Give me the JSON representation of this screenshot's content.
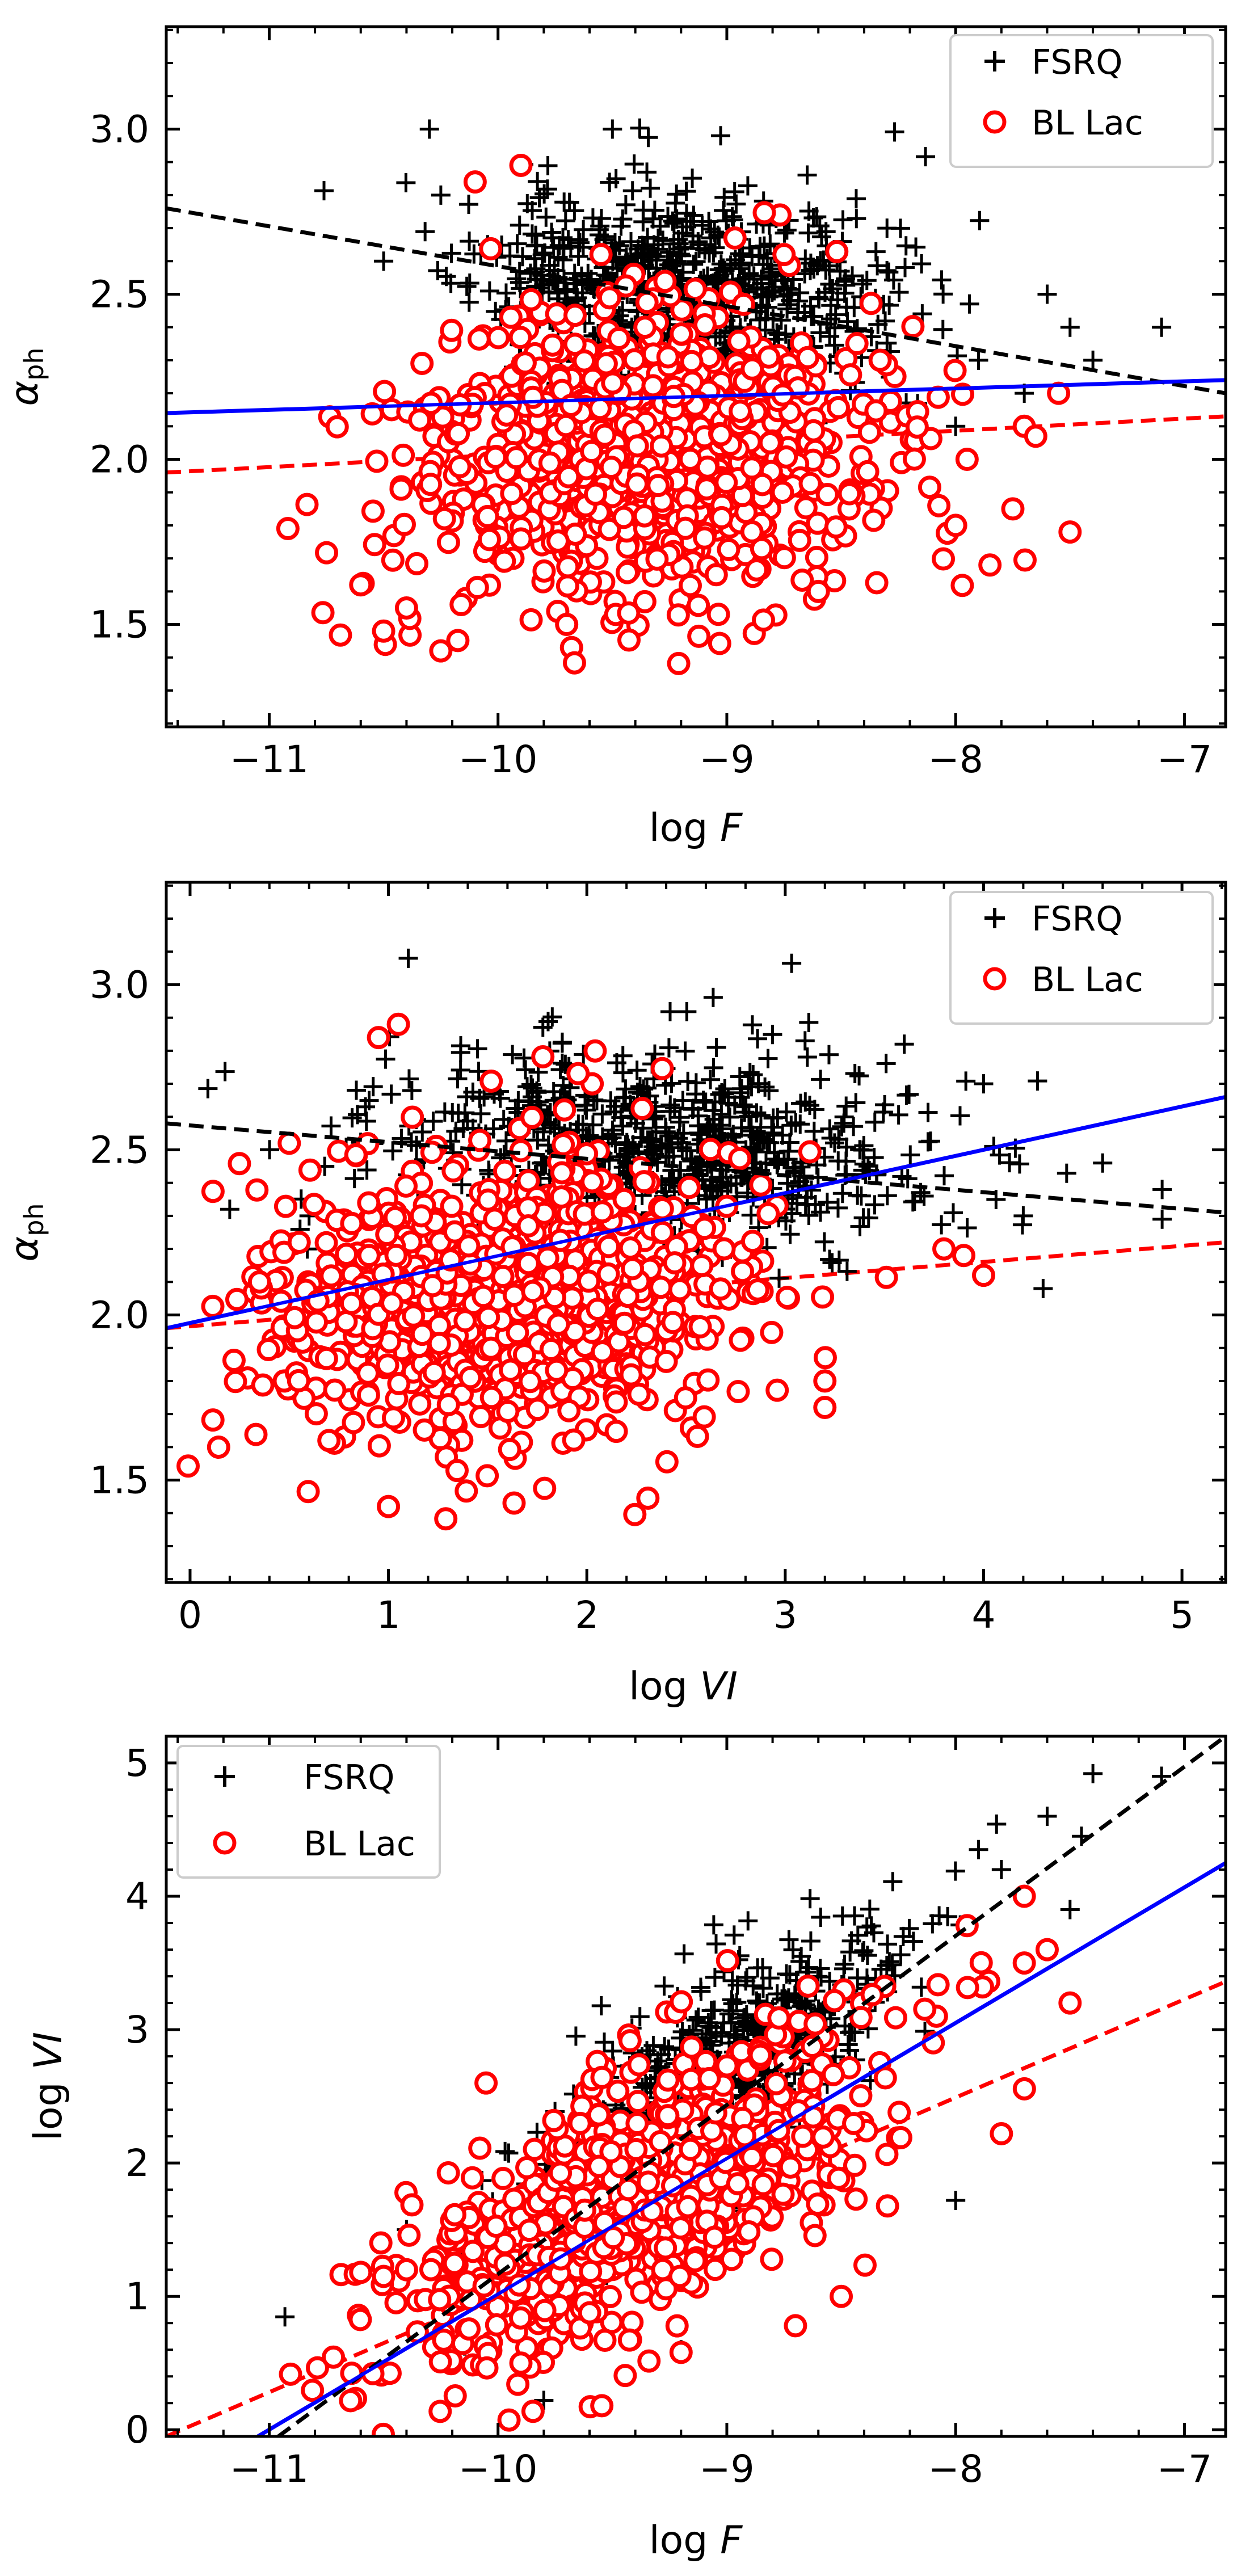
{
  "figure": {
    "type": "scatter",
    "description_panels": 3
  },
  "colors": {
    "fsrq": "#000000",
    "bllac": "#ff0000",
    "all_fit": "#0000ff",
    "axes": "#000000"
  },
  "legend": {
    "fsrq": "FSRQ",
    "bllac": "BL Lac"
  },
  "chart_data": [
    {
      "type": "scatter",
      "title": "",
      "xlabel": "log F",
      "ylabel": "α_ph",
      "xlabel_main": "log",
      "xlabel_var": "F",
      "ylabel_main": "α",
      "ylabel_sub": "ph",
      "xlim": [
        -11.45,
        -6.82
      ],
      "ylim": [
        1.19,
        3.31
      ],
      "xticks": [
        -11,
        -10,
        -9,
        -8,
        -7
      ],
      "xtick_labels": [
        "−11",
        "−10",
        "−9",
        "−8",
        "−7"
      ],
      "yticks": [
        1.5,
        2.0,
        2.5,
        3.0
      ],
      "ytick_labels": [
        "1.5",
        "2.0",
        "2.5",
        "3.0"
      ],
      "legend_position": "top-right",
      "series": [
        {
          "name": "FSRQ",
          "marker": "plus",
          "cloud": {
            "x_mean": -9.2,
            "x_sd": 0.45,
            "y_mean": 2.52,
            "y_sd": 0.15,
            "slope": -0.05,
            "n": 700,
            "seed": 11
          },
          "outliers": [
            [
              -10.5,
              2.6
            ],
            [
              -10.3,
              3.0
            ],
            [
              -9.5,
              3.0
            ],
            [
              -8.3,
              2.7
            ],
            [
              -8.0,
              2.1
            ],
            [
              -7.6,
              2.5
            ],
            [
              -7.5,
              2.4
            ],
            [
              -7.1,
              2.4
            ],
            [
              -7.9,
              2.3
            ],
            [
              -7.4,
              2.3
            ],
            [
              -7.7,
              2.2
            ],
            [
              -10.25,
              2.8
            ]
          ]
        },
        {
          "name": "BL Lac",
          "marker": "circle",
          "cloud": {
            "x_mean": -9.4,
            "x_sd": 0.5,
            "y_mean": 2.0,
            "y_sd": 0.22,
            "slope": 0.03,
            "n": 900,
            "seed": 23
          },
          "outliers": [
            [
              -10.6,
              1.62
            ],
            [
              -10.5,
              1.48
            ],
            [
              -10.4,
              1.55
            ],
            [
              -10.25,
              1.42
            ],
            [
              -10.1,
              2.84
            ],
            [
              -9.9,
              2.89
            ],
            [
              -9.7,
              1.5
            ],
            [
              -9.55,
              2.62
            ],
            [
              -8.75,
              2.62
            ],
            [
              -8.6,
              1.6
            ],
            [
              -8.0,
              1.8
            ],
            [
              -7.85,
              1.68
            ],
            [
              -7.7,
              2.1
            ],
            [
              -7.65,
              2.07
            ],
            [
              -7.5,
              1.78
            ],
            [
              -7.55,
              2.2
            ],
            [
              -7.75,
              1.85
            ],
            [
              -7.95,
              2.0
            ]
          ]
        }
      ],
      "fit_lines": [
        {
          "name": "FSRQ fit",
          "style": "dashed",
          "color_key": "fsrq",
          "x": [
            -11.45,
            -6.82
          ],
          "y": [
            2.76,
            2.2
          ]
        },
        {
          "name": "BL Lac fit",
          "style": "dashed",
          "color_key": "bllac",
          "x": [
            -11.45,
            -6.82
          ],
          "y": [
            1.96,
            2.13
          ]
        },
        {
          "name": "All fit",
          "style": "solid",
          "color_key": "all_fit",
          "x": [
            -11.45,
            -6.82
          ],
          "y": [
            2.14,
            2.24
          ]
        }
      ]
    },
    {
      "type": "scatter",
      "title": "",
      "xlabel": "log VI",
      "ylabel": "α_ph",
      "xlabel_main": "log",
      "xlabel_var": "VI",
      "ylabel_main": "α",
      "ylabel_sub": "ph",
      "xlim": [
        -0.12,
        5.22
      ],
      "ylim": [
        1.19,
        3.31
      ],
      "xticks": [
        0,
        1,
        2,
        3,
        4,
        5
      ],
      "xtick_labels": [
        "0",
        "1",
        "2",
        "3",
        "4",
        "5"
      ],
      "yticks": [
        1.5,
        2.0,
        2.5,
        3.0
      ],
      "ytick_labels": [
        "1.5",
        "2.0",
        "2.5",
        "3.0"
      ],
      "legend_position": "top-right",
      "series": [
        {
          "name": "FSRQ",
          "marker": "plus",
          "cloud": {
            "x_mean": 2.4,
            "x_sd": 0.7,
            "y_mean": 2.5,
            "y_sd": 0.15,
            "slope": -0.03,
            "n": 700,
            "seed": 31
          },
          "outliers": [
            [
              0.2,
              2.32
            ],
            [
              0.6,
              2.3
            ],
            [
              4.0,
              2.7
            ],
            [
              4.3,
              2.08
            ],
            [
              4.9,
              2.38
            ],
            [
              4.9,
              2.29
            ],
            [
              4.6,
              2.46
            ],
            [
              3.6,
              2.82
            ],
            [
              3.1,
              2.83
            ],
            [
              4.2,
              2.3
            ],
            [
              3.7,
              2.36
            ],
            [
              1.1,
              3.08
            ]
          ]
        },
        {
          "name": "BL Lac",
          "marker": "circle",
          "cloud": {
            "x_mean": 1.6,
            "x_sd": 0.6,
            "y_mean": 2.05,
            "y_sd": 0.22,
            "slope": 0.05,
            "n": 900,
            "seed": 47
          },
          "outliers": [
            [
              0.35,
              2.1
            ],
            [
              0.5,
              2.52
            ],
            [
              0.55,
              2.22
            ],
            [
              1.0,
              1.42
            ],
            [
              1.05,
              2.88
            ],
            [
              3.2,
              1.8
            ],
            [
              3.2,
              1.72
            ],
            [
              3.8,
              2.2
            ],
            [
              4.0,
              2.12
            ],
            [
              3.9,
              2.18
            ],
            [
              0.95,
              2.84
            ],
            [
              0.7,
              1.62
            ]
          ]
        }
      ],
      "fit_lines": [
        {
          "name": "FSRQ fit",
          "style": "dashed",
          "color_key": "fsrq",
          "x": [
            -0.12,
            5.22
          ],
          "y": [
            2.58,
            2.31
          ]
        },
        {
          "name": "BL Lac fit",
          "style": "dashed",
          "color_key": "bllac",
          "x": [
            -0.12,
            5.22
          ],
          "y": [
            1.96,
            2.22
          ]
        },
        {
          "name": "All fit",
          "style": "solid",
          "color_key": "all_fit",
          "x": [
            -0.12,
            5.22
          ],
          "y": [
            1.96,
            2.66
          ]
        }
      ]
    },
    {
      "type": "scatter",
      "title": "",
      "xlabel": "log F",
      "ylabel": "log VI",
      "xlabel_main": "log",
      "xlabel_var": "F",
      "ylabel_main": "log",
      "ylabel_var": "VI",
      "xlim": [
        -11.45,
        -6.82
      ],
      "ylim": [
        -0.05,
        5.2
      ],
      "xticks": [
        -11,
        -10,
        -9,
        -8,
        -7
      ],
      "xtick_labels": [
        "−11",
        "−10",
        "−9",
        "−8",
        "−7"
      ],
      "yticks": [
        0,
        1,
        2,
        3,
        4,
        5
      ],
      "ytick_labels": [
        "0",
        "1",
        "2",
        "3",
        "4",
        "5"
      ],
      "legend_position": "top-left",
      "series": [
        {
          "name": "FSRQ",
          "marker": "plus",
          "cloud": {
            "x_mean": -9.1,
            "x_sd": 0.42,
            "y_mean": 2.55,
            "y_sd": 0.4,
            "slope": 1.2,
            "n": 700,
            "seed": 59
          },
          "outliers": [
            [
              -10.4,
              1.5
            ],
            [
              -9.8,
              0.22
            ],
            [
              -9.2,
              0.6
            ],
            [
              -8.0,
              1.72
            ],
            [
              -7.4,
              4.92
            ],
            [
              -7.1,
              4.9
            ],
            [
              -7.6,
              4.6
            ],
            [
              -7.45,
              4.45
            ],
            [
              -7.5,
              3.9
            ],
            [
              -7.8,
              4.2
            ],
            [
              -7.9,
              4.35
            ]
          ]
        },
        {
          "name": "BL Lac",
          "marker": "circle",
          "cloud": {
            "x_mean": -9.4,
            "x_sd": 0.5,
            "y_mean": 1.7,
            "y_sd": 0.45,
            "slope": 0.85,
            "n": 900,
            "seed": 71
          },
          "outliers": [
            [
              -10.6,
              1.18
            ],
            [
              -10.5,
              1.15
            ],
            [
              -10.4,
              1.2
            ],
            [
              -7.8,
              2.22
            ],
            [
              -7.7,
              3.5
            ],
            [
              -7.6,
              3.6
            ],
            [
              -7.5,
              3.2
            ],
            [
              -7.7,
              4.0
            ],
            [
              -7.95,
              3.78
            ],
            [
              -8.5,
              1.0
            ],
            [
              -8.7,
              0.78
            ],
            [
              -9.2,
              0.58
            ],
            [
              -9.9,
              0.5
            ]
          ]
        }
      ],
      "fit_lines": [
        {
          "name": "FSRQ fit",
          "style": "dashed",
          "color_key": "fsrq",
          "x": [
            -10.96,
            -6.82
          ],
          "y": [
            -0.05,
            5.2
          ]
        },
        {
          "name": "BL Lac fit",
          "style": "dashed",
          "color_key": "bllac",
          "x": [
            -11.45,
            -6.82
          ],
          "y": [
            -0.05,
            3.36
          ]
        },
        {
          "name": "All fit",
          "style": "solid",
          "color_key": "all_fit",
          "x": [
            -11.05,
            -6.82
          ],
          "y": [
            -0.05,
            4.25
          ]
        }
      ]
    }
  ]
}
